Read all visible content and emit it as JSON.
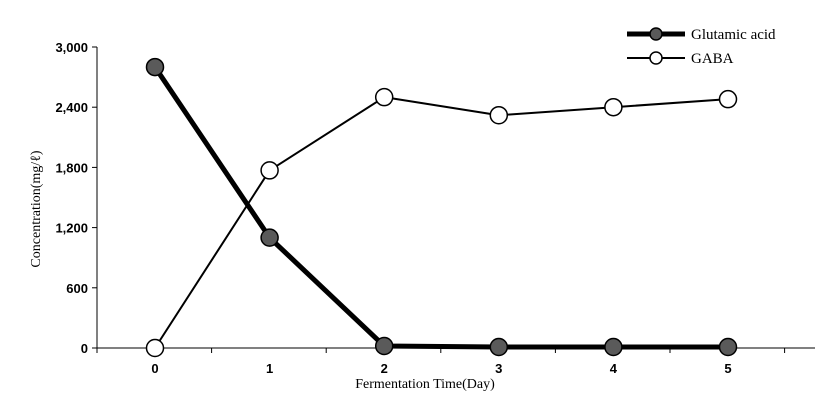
{
  "chart_data": {
    "type": "line",
    "title": "",
    "xlabel": "Fermentation Time(Day)",
    "ylabel": "Concentration(mg/ℓ)",
    "categories": [
      "0",
      "1",
      "2",
      "3",
      "4",
      "5"
    ],
    "x": [
      0,
      1,
      2,
      3,
      4,
      5
    ],
    "y_ticks": [
      "0",
      "600",
      "1,200",
      "1,800",
      "2,400",
      "3,000"
    ],
    "ylim": [
      0,
      3000
    ],
    "grid": false,
    "legend_position": "top-right",
    "series": [
      {
        "name": "Glutamic acid",
        "values": [
          2800,
          1100,
          20,
          10,
          10,
          10
        ],
        "line_color": "#000000",
        "marker_fill": "#5a5a5a",
        "line_style": "thick"
      },
      {
        "name": "GABA",
        "values": [
          0,
          1770,
          2500,
          2320,
          2400,
          2480
        ],
        "line_color": "#000000",
        "marker_fill": "#ffffff",
        "line_style": "thin"
      }
    ]
  }
}
